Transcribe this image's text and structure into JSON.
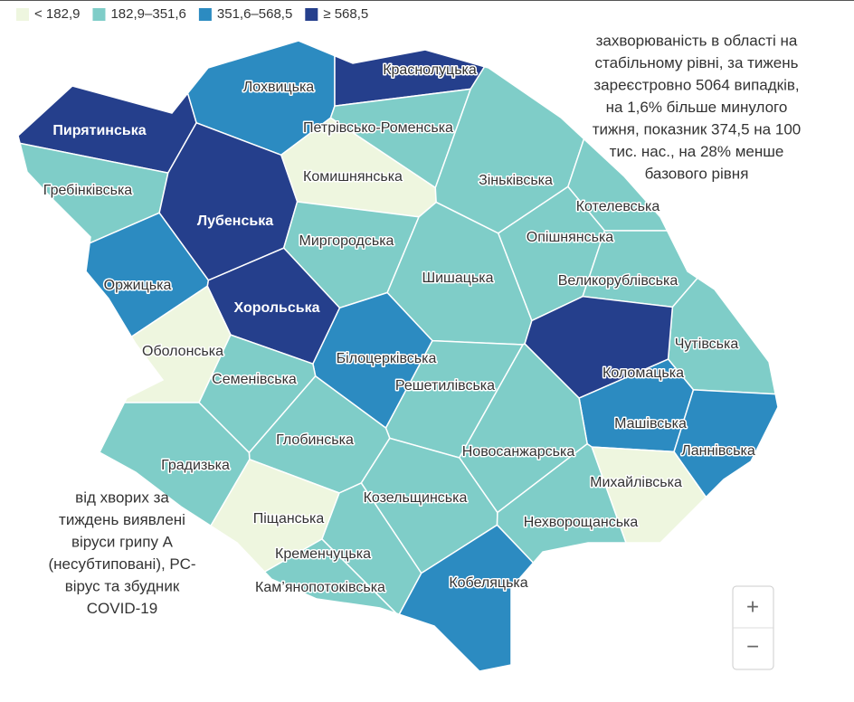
{
  "legend": [
    {
      "label": "< 182,9",
      "color": "#eef6df"
    },
    {
      "label": "182,9–351,6",
      "color": "#7fcdc8"
    },
    {
      "label": "351,6–568,5",
      "color": "#2c8bc1"
    },
    {
      "label": "≥ 568,5",
      "color": "#253f8c"
    }
  ],
  "regions": [
    {
      "name": "Пирятинська",
      "range": "≥ 568,5"
    },
    {
      "name": "Лохвицька",
      "range": "351,6–568,5"
    },
    {
      "name": "Краснолуцька",
      "range": "≥ 568,5"
    },
    {
      "name": "Петрівсько-Роменська",
      "range": "182,9–351,6"
    },
    {
      "name": "Гребінківська",
      "range": "182,9–351,6"
    },
    {
      "name": "Комишнянська",
      "range": "< 182,9"
    },
    {
      "name": "Зіньківська",
      "range": "182,9–351,6"
    },
    {
      "name": "Котелевська",
      "range": "182,9–351,6"
    },
    {
      "name": "Лубенська",
      "range": "≥ 568,5"
    },
    {
      "name": "Миргородська",
      "range": "182,9–351,6"
    },
    {
      "name": "Опішнянська",
      "range": "182,9–351,6"
    },
    {
      "name": "Оржицька",
      "range": "351,6–568,5"
    },
    {
      "name": "Шишацька",
      "range": "182,9–351,6"
    },
    {
      "name": "Великорублівська",
      "range": "182,9–351,6"
    },
    {
      "name": "Хорольська",
      "range": "≥ 568,5"
    },
    {
      "name": "Оболонська",
      "range": "< 182,9"
    },
    {
      "name": "Білоцерківська",
      "range": "351,6–568,5"
    },
    {
      "name": "Чутівська",
      "range": "182,9–351,6"
    },
    {
      "name": "Семенівська",
      "range": "182,9–351,6"
    },
    {
      "name": "Решетилівська",
      "range": "182,9–351,6"
    },
    {
      "name": "Коломацька",
      "range": "≥ 568,5"
    },
    {
      "name": "Машівська",
      "range": "351,6–568,5"
    },
    {
      "name": "Ланнівська",
      "range": "351,6–568,5"
    },
    {
      "name": "Глобинська",
      "range": "182,9–351,6"
    },
    {
      "name": "Новосанжарська",
      "range": "182,9–351,6"
    },
    {
      "name": "Градизька",
      "range": "182,9–351,6"
    },
    {
      "name": "Михайлівська",
      "range": "< 182,9"
    },
    {
      "name": "Козельщинська",
      "range": "182,9–351,6"
    },
    {
      "name": "Нехворощанська",
      "range": "182,9–351,6"
    },
    {
      "name": "Піщанська",
      "range": "< 182,9"
    },
    {
      "name": "Кременчуцька",
      "range": "182,9–351,6"
    },
    {
      "name": "Кобеляцька",
      "range": "351,6–568,5"
    },
    {
      "name": "Кам’янопотоківська",
      "range": "182,9–351,6"
    }
  ],
  "annotations": {
    "right": [
      "захворюваність в області на",
      "стабільному рівні, за тижень",
      "зареєстровно 5064 випадків,",
      "на 1,6% більше минулого",
      "тижня, показник 374,5 на 100",
      "тис. нас., на 28% менше",
      "базового рівня"
    ],
    "left": [
      "від хворих за",
      "тиждень виявлені",
      "віруси грипу А",
      "(несубтиповані), РС-",
      "вірус та збудник",
      "COVID-19"
    ]
  },
  "zoom": {
    "in": "+",
    "out": "−"
  }
}
